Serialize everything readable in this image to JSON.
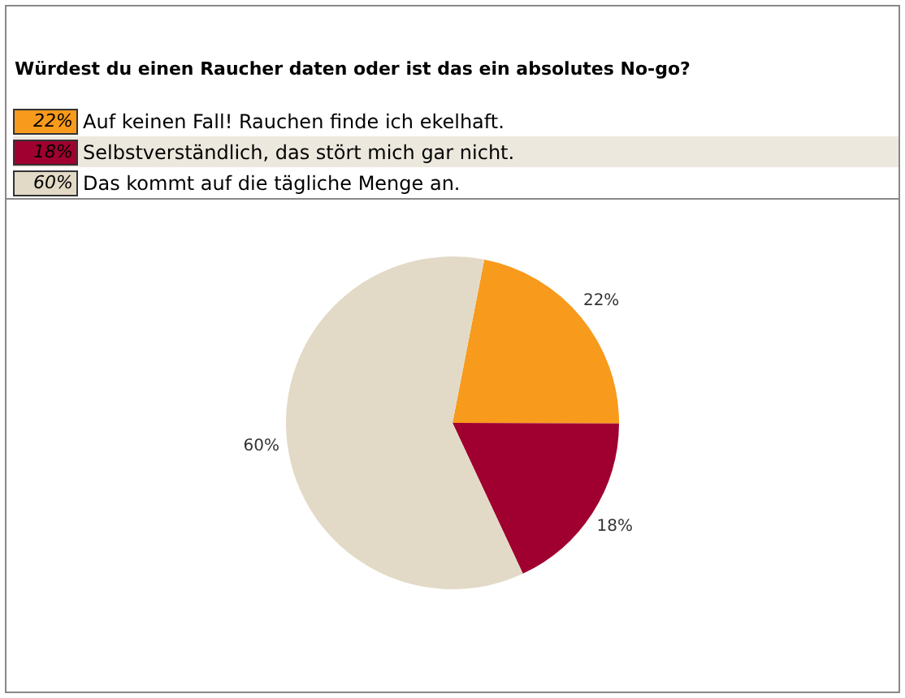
{
  "chart_data": {
    "type": "pie",
    "title": "Würdest du einen Raucher daten oder ist das ein absolutes No-go?",
    "categories": [
      "Auf keinen Fall! Rauchen finde ich ekelhaft.",
      "Selbstverständlich, das stört mich gar nicht.",
      "Das kommt auf die tägliche Menge an."
    ],
    "values": [
      22,
      18,
      60
    ],
    "colors": [
      "#f89a1c",
      "#a00030",
      "#e2dac6"
    ],
    "value_labels": [
      "22%",
      "18%",
      "60%"
    ],
    "legend": "top"
  }
}
